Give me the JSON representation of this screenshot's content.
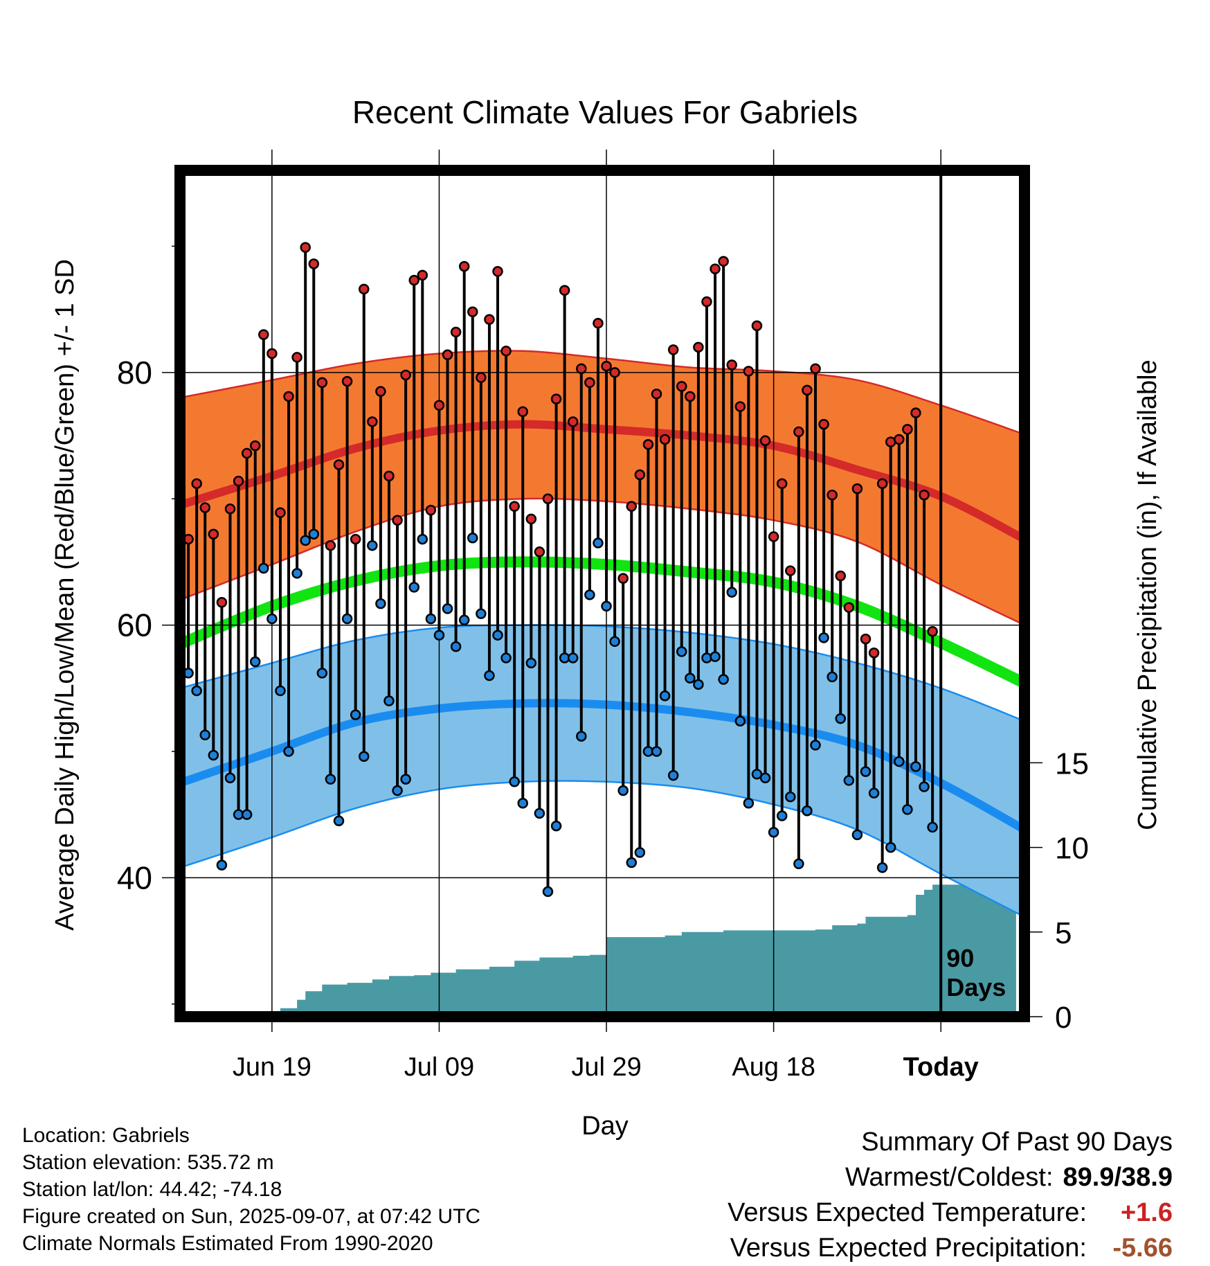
{
  "chart_data": {
    "type": "line",
    "title": "Recent Climate Values For Gabriels",
    "xlabel": "Day",
    "ylabel": "Average Daily High/Low/Mean (Red/Blue/Green) +/- 1 SD",
    "ylabel_right": "Cumulative Precipitation (in), If Available",
    "x_range_days": [
      -91,
      10
    ],
    "ylim": [
      29,
      96
    ],
    "ylim_right": [
      0,
      50
    ],
    "x_ticks": [
      {
        "day": -80,
        "label": "Jun 19"
      },
      {
        "day": -60,
        "label": "Jul 09"
      },
      {
        "day": -40,
        "label": "Jul 29"
      },
      {
        "day": -20,
        "label": "Aug 18"
      },
      {
        "day": 0,
        "label": "Today"
      }
    ],
    "y_ticks_left": [
      40,
      60,
      80
    ],
    "y_ticks_right": [
      0,
      5,
      10,
      15
    ],
    "window_label": "90 Days",
    "grid": true,
    "normals": {
      "high_mean": [
        [
          -91,
          69.5
        ],
        [
          -80,
          71.8
        ],
        [
          -70,
          74.0
        ],
        [
          -60,
          75.4
        ],
        [
          -50,
          75.9
        ],
        [
          -40,
          75.5
        ],
        [
          -30,
          75.0
        ],
        [
          -20,
          74.2
        ],
        [
          -10,
          72.3
        ],
        [
          0,
          70.2
        ],
        [
          10,
          66.8
        ]
      ],
      "high_upper": [
        [
          -91,
          78.0
        ],
        [
          -80,
          79.4
        ],
        [
          -70,
          80.7
        ],
        [
          -60,
          81.5
        ],
        [
          -50,
          81.7
        ],
        [
          -40,
          81.1
        ],
        [
          -30,
          80.4
        ],
        [
          -20,
          80.1
        ],
        [
          -10,
          79.4
        ],
        [
          0,
          77.4
        ],
        [
          10,
          75.1
        ]
      ],
      "high_lower": [
        [
          -91,
          62.0
        ],
        [
          -80,
          64.8
        ],
        [
          -70,
          67.4
        ],
        [
          -60,
          69.4
        ],
        [
          -50,
          70.0
        ],
        [
          -40,
          69.8
        ],
        [
          -30,
          69.2
        ],
        [
          -20,
          68.3
        ],
        [
          -10,
          66.6
        ],
        [
          0,
          63.2
        ],
        [
          10,
          60.0
        ]
      ],
      "mean_line": [
        [
          -91,
          58.5
        ],
        [
          -80,
          61.5
        ],
        [
          -70,
          63.5
        ],
        [
          -60,
          64.7
        ],
        [
          -50,
          65.0
        ],
        [
          -40,
          64.8
        ],
        [
          -30,
          64.2
        ],
        [
          -20,
          63.4
        ],
        [
          -10,
          61.5
        ],
        [
          0,
          58.6
        ],
        [
          10,
          55.4
        ]
      ],
      "low_mean": [
        [
          -91,
          47.5
        ],
        [
          -80,
          50.0
        ],
        [
          -70,
          52.3
        ],
        [
          -60,
          53.4
        ],
        [
          -50,
          53.8
        ],
        [
          -40,
          53.7
        ],
        [
          -30,
          53.1
        ],
        [
          -20,
          52.1
        ],
        [
          -10,
          50.5
        ],
        [
          0,
          47.5
        ],
        [
          10,
          43.8
        ]
      ],
      "low_upper": [
        [
          -91,
          55.0
        ],
        [
          -80,
          57.0
        ],
        [
          -70,
          58.8
        ],
        [
          -60,
          59.8
        ],
        [
          -50,
          60.0
        ],
        [
          -40,
          59.9
        ],
        [
          -30,
          59.4
        ],
        [
          -20,
          58.5
        ],
        [
          -10,
          57.0
        ],
        [
          0,
          55.0
        ],
        [
          10,
          52.4
        ]
      ],
      "low_lower": [
        [
          -91,
          40.8
        ],
        [
          -80,
          43.2
        ],
        [
          -70,
          45.5
        ],
        [
          -60,
          47.0
        ],
        [
          -50,
          47.6
        ],
        [
          -40,
          47.6
        ],
        [
          -30,
          47.1
        ],
        [
          -20,
          45.8
        ],
        [
          -10,
          43.8
        ],
        [
          0,
          40.3
        ],
        [
          10,
          36.9
        ]
      ]
    },
    "daily": [
      {
        "day": -90,
        "high": 66.8,
        "low": 56.2
      },
      {
        "day": -89,
        "high": 71.2,
        "low": 54.8
      },
      {
        "day": -88,
        "high": 69.3,
        "low": 51.3
      },
      {
        "day": -87,
        "high": 67.2,
        "low": 49.7
      },
      {
        "day": -86,
        "high": 61.8,
        "low": 41.0
      },
      {
        "day": -85,
        "high": 69.2,
        "low": 47.9
      },
      {
        "day": -84,
        "high": 71.4,
        "low": 45.0
      },
      {
        "day": -83,
        "high": 73.6,
        "low": 45.0
      },
      {
        "day": -82,
        "high": 74.2,
        "low": 57.1
      },
      {
        "day": -81,
        "high": 83.0,
        "low": 64.5
      },
      {
        "day": -80,
        "high": 81.5,
        "low": 60.5
      },
      {
        "day": -79,
        "high": 68.9,
        "low": 54.8
      },
      {
        "day": -78,
        "high": 78.1,
        "low": 50.0
      },
      {
        "day": -77,
        "high": 81.2,
        "low": 64.1
      },
      {
        "day": -76,
        "high": 89.9,
        "low": 66.7
      },
      {
        "day": -75,
        "high": 88.6,
        "low": 67.2
      },
      {
        "day": -74,
        "high": 79.2,
        "low": 56.2
      },
      {
        "day": -73,
        "high": 66.3,
        "low": 47.8
      },
      {
        "day": -72,
        "high": 72.7,
        "low": 44.5
      },
      {
        "day": -71,
        "high": 79.3,
        "low": 60.5
      },
      {
        "day": -70,
        "high": 66.8,
        "low": 52.9
      },
      {
        "day": -69,
        "high": 86.6,
        "low": 49.6
      },
      {
        "day": -68,
        "high": 76.1,
        "low": 66.3
      },
      {
        "day": -67,
        "high": 78.5,
        "low": 61.7
      },
      {
        "day": -66,
        "high": 71.8,
        "low": 54.0
      },
      {
        "day": -65,
        "high": 68.3,
        "low": 46.9
      },
      {
        "day": -64,
        "high": 79.8,
        "low": 47.8
      },
      {
        "day": -63,
        "high": 87.3,
        "low": 63.0
      },
      {
        "day": -62,
        "high": 87.7,
        "low": 66.8
      },
      {
        "day": -61,
        "high": 69.1,
        "low": 60.5
      },
      {
        "day": -60,
        "high": 77.4,
        "low": 59.2
      },
      {
        "day": -59,
        "high": 81.4,
        "low": 61.3
      },
      {
        "day": -58,
        "high": 83.2,
        "low": 58.3
      },
      {
        "day": -57,
        "high": 88.4,
        "low": 60.4
      },
      {
        "day": -56,
        "high": 84.8,
        "low": 66.9
      },
      {
        "day": -55,
        "high": 79.6,
        "low": 60.9
      },
      {
        "day": -54,
        "high": 84.2,
        "low": 56.0
      },
      {
        "day": -53,
        "high": 88.0,
        "low": 59.2
      },
      {
        "day": -52,
        "high": 81.7,
        "low": 57.4
      },
      {
        "day": -51,
        "high": 69.4,
        "low": 47.6
      },
      {
        "day": -50,
        "high": 76.9,
        "low": 45.9
      },
      {
        "day": -49,
        "high": 68.4,
        "low": 57.0
      },
      {
        "day": -48,
        "high": 65.8,
        "low": 45.1
      },
      {
        "day": -47,
        "high": 70.0,
        "low": 38.9
      },
      {
        "day": -46,
        "high": 77.9,
        "low": 44.1
      },
      {
        "day": -45,
        "high": 86.5,
        "low": 57.4
      },
      {
        "day": -44,
        "high": 76.1,
        "low": 57.4
      },
      {
        "day": -43,
        "high": 80.3,
        "low": 51.2
      },
      {
        "day": -42,
        "high": 79.2,
        "low": 62.4
      },
      {
        "day": -41,
        "high": 83.9,
        "low": 66.5
      },
      {
        "day": -40,
        "high": 80.5,
        "low": 61.5
      },
      {
        "day": -39,
        "high": 80.0,
        "low": 58.7
      },
      {
        "day": -38,
        "high": 63.7,
        "low": 46.9
      },
      {
        "day": -37,
        "high": 69.4,
        "low": 41.2
      },
      {
        "day": -36,
        "high": 71.9,
        "low": 42.0
      },
      {
        "day": -35,
        "high": 74.3,
        "low": 50.0
      },
      {
        "day": -34,
        "high": 78.3,
        "low": 50.0
      },
      {
        "day": -33,
        "high": 74.7,
        "low": 54.4
      },
      {
        "day": -32,
        "high": 81.8,
        "low": 48.1
      },
      {
        "day": -31,
        "high": 78.9,
        "low": 57.9
      },
      {
        "day": -30,
        "high": 78.1,
        "low": 55.8
      },
      {
        "day": -29,
        "high": 82.0,
        "low": 55.3
      },
      {
        "day": -28,
        "high": 85.6,
        "low": 57.4
      },
      {
        "day": -27,
        "high": 88.2,
        "low": 57.5
      },
      {
        "day": -26,
        "high": 88.8,
        "low": 55.7
      },
      {
        "day": -25,
        "high": 80.6,
        "low": 62.6
      },
      {
        "day": -24,
        "high": 77.3,
        "low": 52.4
      },
      {
        "day": -23,
        "high": 80.1,
        "low": 45.9
      },
      {
        "day": -22,
        "high": 83.7,
        "low": 48.2
      },
      {
        "day": -21,
        "high": 74.6,
        "low": 47.9
      },
      {
        "day": -20,
        "high": 67.0,
        "low": 43.6
      },
      {
        "day": -19,
        "high": 71.2,
        "low": 44.9
      },
      {
        "day": -18,
        "high": 64.3,
        "low": 46.4
      },
      {
        "day": -17,
        "high": 75.3,
        "low": 41.1
      },
      {
        "day": -16,
        "high": 78.6,
        "low": 45.3
      },
      {
        "day": -15,
        "high": 80.3,
        "low": 50.5
      },
      {
        "day": -14,
        "high": 75.9,
        "low": 59.0
      },
      {
        "day": -13,
        "high": 70.3,
        "low": 55.9
      },
      {
        "day": -12,
        "high": 63.9,
        "low": 52.6
      },
      {
        "day": -11,
        "high": 61.4,
        "low": 47.7
      },
      {
        "day": -10,
        "high": 70.8,
        "low": 43.4
      },
      {
        "day": -9,
        "high": 58.9,
        "low": 48.4
      },
      {
        "day": -8,
        "high": 57.8,
        "low": 46.7
      },
      {
        "day": -7,
        "high": 71.2,
        "low": 40.8
      },
      {
        "day": -6,
        "high": 74.5,
        "low": 42.4
      },
      {
        "day": -5,
        "high": 74.7,
        "low": 49.2
      },
      {
        "day": -4,
        "high": 75.5,
        "low": 45.4
      },
      {
        "day": -3,
        "high": 76.8,
        "low": 48.8
      },
      {
        "day": -2,
        "high": 70.3,
        "low": 47.2
      },
      {
        "day": -1,
        "high": 59.5,
        "low": 44.0
      }
    ],
    "cumulative_precip_steps": [
      [
        -91,
        0.0
      ],
      [
        -80,
        0.2
      ],
      [
        -79,
        0.5
      ],
      [
        -77,
        1.0
      ],
      [
        -76,
        1.5
      ],
      [
        -74,
        1.9
      ],
      [
        -71,
        2.0
      ],
      [
        -68,
        2.2
      ],
      [
        -66,
        2.4
      ],
      [
        -63,
        2.45
      ],
      [
        -61,
        2.6
      ],
      [
        -58,
        2.8
      ],
      [
        -54,
        2.95
      ],
      [
        -51,
        3.3
      ],
      [
        -48,
        3.5
      ],
      [
        -44,
        3.6
      ],
      [
        -42,
        3.65
      ],
      [
        -40,
        4.7
      ],
      [
        -33,
        4.8
      ],
      [
        -31,
        5.0
      ],
      [
        -26,
        5.1
      ],
      [
        -15,
        5.15
      ],
      [
        -13,
        5.4
      ],
      [
        -10,
        5.5
      ],
      [
        -9,
        5.9
      ],
      [
        -4,
        6.0
      ],
      [
        -3,
        7.2
      ],
      [
        -2,
        7.5
      ],
      [
        -1,
        7.8
      ],
      [
        9,
        7.8
      ]
    ],
    "colors": {
      "high_band": "#f47930",
      "high_line": "#d42a2a",
      "mean_line": "#11e411",
      "low_band": "#80c0e8",
      "low_line": "#1a8cf0",
      "precip": "#4a9aa3",
      "high_marker": "#d42a2a",
      "low_marker": "#1f7fd6"
    }
  },
  "station": {
    "location": "Location: Gabriels",
    "elevation": "Station elevation: 535.72 m",
    "latlon": "Station lat/lon: 44.42; -74.18",
    "created": "Figure created on Sun, 2025-09-07, at 07:42 UTC",
    "normals": "Climate Normals Estimated From 1990-2020"
  },
  "summary": {
    "heading": "Summary Of Past 90 Days",
    "warmest_coldest_label": "Warmest/Coldest:",
    "warmest_coldest_value": "89.9/38.9",
    "temp_vs_expected_label": "Versus Expected Temperature:",
    "temp_vs_expected_value": "+1.6",
    "precip_vs_expected_label": "Versus Expected Precipitation:",
    "precip_vs_expected_value": "-5.66"
  }
}
